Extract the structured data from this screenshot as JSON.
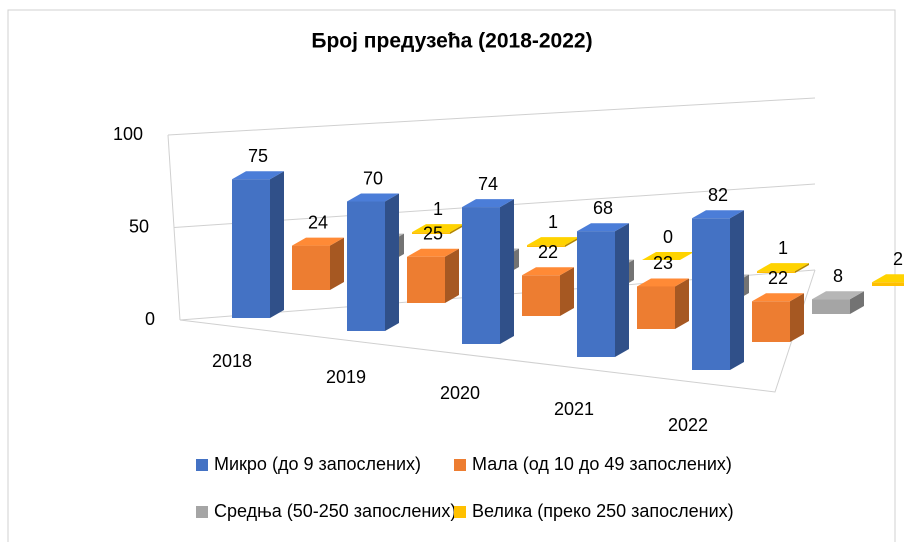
{
  "chart_data": {
    "type": "bar3d",
    "title": "Број предузећа (2018-2022)",
    "categories": [
      "2018",
      "2019",
      "2020",
      "2021",
      "2022"
    ],
    "series": [
      {
        "name": "Микро (до 9  запослених)",
        "color": "#4472c4",
        "values": [
          75,
          70,
          74,
          68,
          82
        ]
      },
      {
        "name": "Мала (од 10 до 49 запослених)",
        "color": "#ed7d31",
        "values": [
          24,
          25,
          22,
          23,
          22
        ]
      },
      {
        "name": "Средња (50-250 запослених)",
        "color": "#a5a5a5",
        "values": [
          11,
          10,
          11,
          10,
          8
        ]
      },
      {
        "name": "Велика (преко 250 запослених)",
        "color": "#ffc000",
        "values": [
          1,
          1,
          0,
          1,
          2
        ]
      }
    ],
    "ylim": [
      0,
      100
    ],
    "yticks": [
      0,
      50,
      100
    ],
    "grid": true,
    "legend": "bottom"
  }
}
